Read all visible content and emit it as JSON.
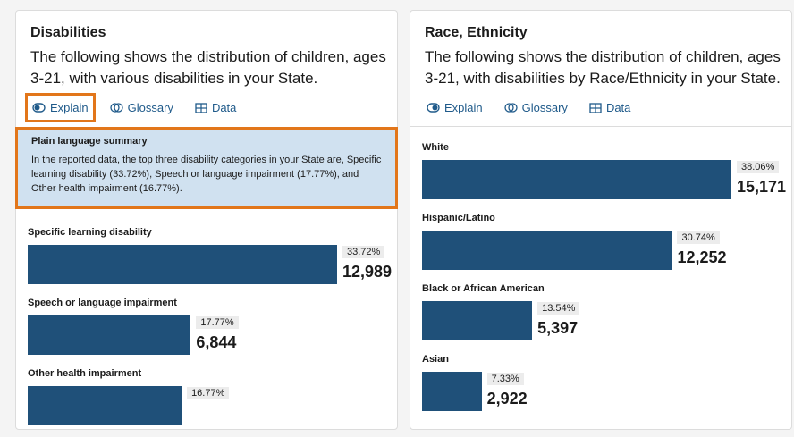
{
  "panels": [
    {
      "title": "Disabilities",
      "description": "The following shows the distribution of children, ages 3-21, with various disabilities in your State.",
      "actions": [
        "Explain",
        "Glossary",
        "Data"
      ],
      "summary": {
        "heading": "Plain language summary",
        "text": "In the reported data, the top three disability categories in your State are, Specific learning disability (33.72%), Speech or language impairment (17.77%), and Other health impairment (16.77%)."
      },
      "bars": [
        {
          "label": "Specific learning disability",
          "percent": 33.72,
          "percent_label": "33.72%",
          "count": "12,989"
        },
        {
          "label": "Speech or language impairment",
          "percent": 17.77,
          "percent_label": "17.77%",
          "count": "6,844"
        },
        {
          "label": "Other health impairment",
          "percent": 16.77,
          "percent_label": "16.77%"
        }
      ]
    },
    {
      "title": "Race, Ethnicity",
      "description": "The following shows the distribution of children, ages 3-21, with disabilities by Race/Ethnicity in your State.",
      "actions": [
        "Explain",
        "Glossary",
        "Data"
      ],
      "bars": [
        {
          "label": "White",
          "percent": 38.06,
          "percent_label": "38.06%",
          "count": "15,171"
        },
        {
          "label": "Hispanic/Latino",
          "percent": 30.74,
          "percent_label": "30.74%",
          "count": "12,252"
        },
        {
          "label": "Black or African American",
          "percent": 13.54,
          "percent_label": "13.54%",
          "count": "5,397"
        },
        {
          "label": "Asian",
          "percent": 7.33,
          "percent_label": "7.33%",
          "count": "2,922"
        }
      ]
    }
  ]
}
